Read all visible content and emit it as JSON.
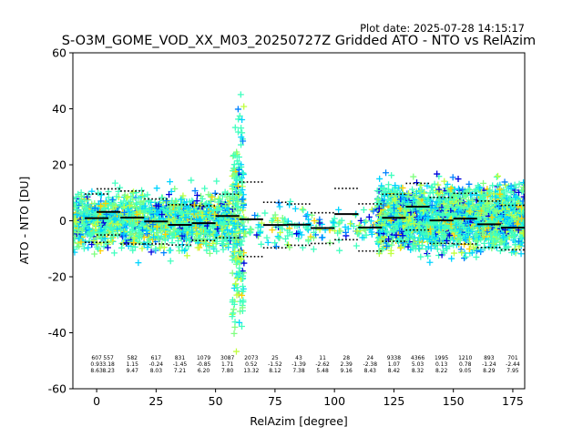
{
  "chart_data": {
    "type": "scatter",
    "title": "S-O3M_GOME_VOD_XX_M03_20250727Z Gridded ATO - NTO vs RelAzim",
    "plot_date": "Plot date: 2025-07-28 14:15:17",
    "xlabel": "RelAzim [degree]",
    "ylabel": "ATO - NTO [DU]",
    "xlim": [
      -10,
      180
    ],
    "ylim": [
      -60,
      60
    ],
    "x_ticks": [
      0,
      25,
      50,
      75,
      100,
      125,
      150,
      175
    ],
    "y_ticks": [
      -60,
      -40,
      -20,
      0,
      20,
      40,
      60
    ],
    "grid": false,
    "marker": "plus",
    "colormap": [
      "#0000dd",
      "#0080ff",
      "#00d4ff",
      "#40ffbf",
      "#7fff80",
      "#c0ff40",
      "#ffd000"
    ],
    "bins": [
      {
        "center": 0,
        "n": 607,
        "mean": 0.93,
        "std": 8.63
      },
      {
        "center": 5,
        "n": 557,
        "mean": 3.18,
        "std": 8.23
      },
      {
        "center": 15,
        "n": 582,
        "mean": 1.15,
        "std": 9.47
      },
      {
        "center": 25,
        "n": 617,
        "mean": -0.24,
        "std": 8.03
      },
      {
        "center": 35,
        "n": 831,
        "mean": -1.45,
        "std": 7.21
      },
      {
        "center": 45,
        "n": 1079,
        "mean": -0.85,
        "std": 6.2
      },
      {
        "center": 55,
        "n": 3087,
        "mean": 1.71,
        "std": 7.8
      },
      {
        "center": 65,
        "n": 2073,
        "mean": 0.52,
        "std": 13.32
      },
      {
        "center": 75,
        "n": 25,
        "mean": -1.52,
        "std": 8.12
      },
      {
        "center": 85,
        "n": 43,
        "mean": -1.39,
        "std": 7.38
      },
      {
        "center": 95,
        "n": 11,
        "mean": -2.62,
        "std": 5.48
      },
      {
        "center": 105,
        "n": 28,
        "mean": 2.39,
        "std": 9.16
      },
      {
        "center": 115,
        "n": 24,
        "mean": -2.38,
        "std": 8.43
      },
      {
        "center": 125,
        "n": 9338,
        "mean": 1.07,
        "std": 8.42
      },
      {
        "center": 135,
        "n": 4366,
        "mean": 5.03,
        "std": 8.32
      },
      {
        "center": 145,
        "n": 1995,
        "mean": 0.13,
        "std": 8.22
      },
      {
        "center": 155,
        "n": 1210,
        "mean": 0.78,
        "std": 9.05
      },
      {
        "center": 165,
        "n": 893,
        "mean": -1.24,
        "std": 8.29
      },
      {
        "center": 175,
        "n": 701,
        "mean": -2.44,
        "std": 7.95
      }
    ],
    "clusters": [
      {
        "x_range": [
          -10,
          57
        ],
        "y_center": 0,
        "y_spread": 12
      },
      {
        "x_range": [
          57,
          62
        ],
        "y_center": 0,
        "y_spread": 45
      },
      {
        "x_range": [
          62,
          118
        ],
        "y_center": -2,
        "y_spread": 9
      },
      {
        "x_range": [
          118,
          180
        ],
        "y_center": 1,
        "y_spread": 14
      }
    ]
  }
}
